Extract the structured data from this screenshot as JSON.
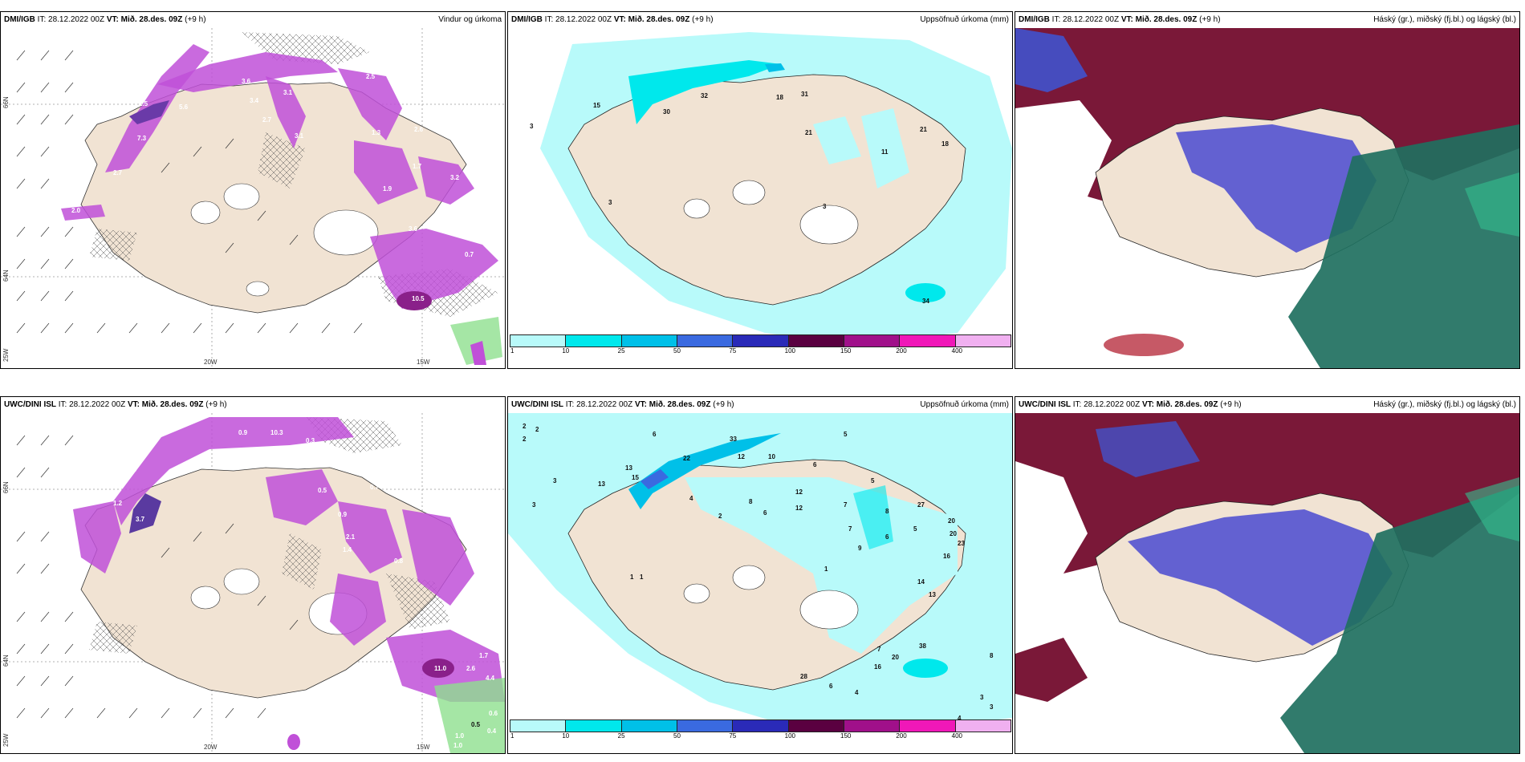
{
  "panels": {
    "top_left": {
      "source": "DMI/IGB",
      "it_label": "IT:",
      "it_value": "28.12.2022 00Z",
      "vt_label": "VT:",
      "vt_value": "Mið. 28.des. 09Z",
      "lead": "(+9 h)",
      "title": "Vindur og úrkoma"
    },
    "top_mid": {
      "source": "DMI/IGB",
      "it_label": "IT:",
      "it_value": "28.12.2022 00Z",
      "vt_label": "VT:",
      "vt_value": "Mið. 28.des. 09Z",
      "lead": "(+9 h)",
      "title": "Uppsöfnuð úrkoma (mm)"
    },
    "top_right": {
      "source": "DMI/IGB",
      "it_label": "IT:",
      "it_value": "28.12.2022 00Z",
      "vt_label": "VT:",
      "vt_value": "Mið. 28.des. 09Z",
      "lead": "(+9 h)",
      "title": "Háský (gr.), miðský (fj.bl.) og lágský (bl.)"
    },
    "bot_left": {
      "source": "UWC/DINI ISL",
      "it_label": "IT:",
      "it_value": "28.12.2022 00Z",
      "vt_label": "VT:",
      "vt_value": "Mið. 28.des. 09Z",
      "lead": "(+9 h)",
      "title": ""
    },
    "bot_mid": {
      "source": "UWC/DINI ISL",
      "it_label": "IT:",
      "it_value": "28.12.2022 00Z",
      "vt_label": "VT:",
      "vt_value": "Mið. 28.des. 09Z",
      "lead": "(+9 h)",
      "title": "Uppsöfnuð úrkoma (mm)"
    },
    "bot_right": {
      "source": "UWC/DINI ISL",
      "it_label": "IT:",
      "it_value": "28.12.2022 00Z",
      "vt_label": "VT:",
      "vt_value": "Mið. 28.des. 09Z",
      "lead": "(+9 h)",
      "title": "Háský (gr.), miðský (fj.bl.) og lágský (bl.)"
    }
  },
  "axis_labels": {
    "lat_66": "66N",
    "lat_64": "64N",
    "lat_25": "25W",
    "lon_20": "20W",
    "lon_15": "15W"
  },
  "colorbar": {
    "labels": [
      "1",
      "10",
      "25",
      "50",
      "75",
      "100",
      "150",
      "200",
      "400"
    ],
    "colors": [
      "#b8fafa",
      "#00e8ec",
      "#00c0e8",
      "#3a6ae0",
      "#2a2ab8",
      "#5a0040",
      "#a0108a",
      "#f018b8",
      "#f0b0f0"
    ]
  },
  "accum_values_top": [
    "3",
    "15",
    "30",
    "32",
    "18",
    "31",
    "21",
    "21",
    "18",
    "11",
    "3",
    "3",
    "34"
  ],
  "accum_values_bot": [
    "2",
    "2",
    "2",
    "3",
    "3",
    "6",
    "13",
    "13",
    "22",
    "15",
    "33",
    "12",
    "10",
    "5",
    "6",
    "4",
    "2",
    "8",
    "6",
    "12",
    "12",
    "7",
    "5",
    "27",
    "20",
    "20",
    "23",
    "16",
    "7",
    "9",
    "8",
    "6",
    "5",
    "1",
    "1",
    "1",
    "14",
    "13",
    "38",
    "20",
    "16",
    "7",
    "28",
    "6",
    "4",
    "3",
    "4",
    "3",
    "8"
  ],
  "precip_values_top": [
    "3.6",
    "3.1",
    "2.5",
    "5.6",
    "3.4",
    "2.7",
    "2.5",
    "7.3",
    "1.3",
    "2.7",
    "2.6",
    "1.7",
    "1.9",
    "3.1",
    "3.6",
    "0.7",
    "10.5",
    "2.0",
    "3.2"
  ],
  "precip_values_bot": [
    "0.9",
    "10.3",
    "0.3",
    "2.5",
    "1.2",
    "0.5",
    "1.6",
    "0.4",
    "0.9",
    "0.5",
    "0.7",
    "2.1",
    "1.4",
    "0.8",
    "3.7",
    "11.0",
    "2.6",
    "1.7",
    "4.4",
    "1.0",
    "0.5",
    "0.6",
    "0.4",
    "1.0",
    "0.3"
  ],
  "colors": {
    "land": "#f1e3d3",
    "ocean_bg": "#ffffff",
    "accum_light": "#b8fafa",
    "accum_mid": "#00e8ec",
    "precip_magenta": "#c050d8",
    "precip_dark": "#8a208a",
    "cloud_high": "#7a1838",
    "cloud_mid": "#4a4ad0",
    "cloud_low": "#207060"
  }
}
